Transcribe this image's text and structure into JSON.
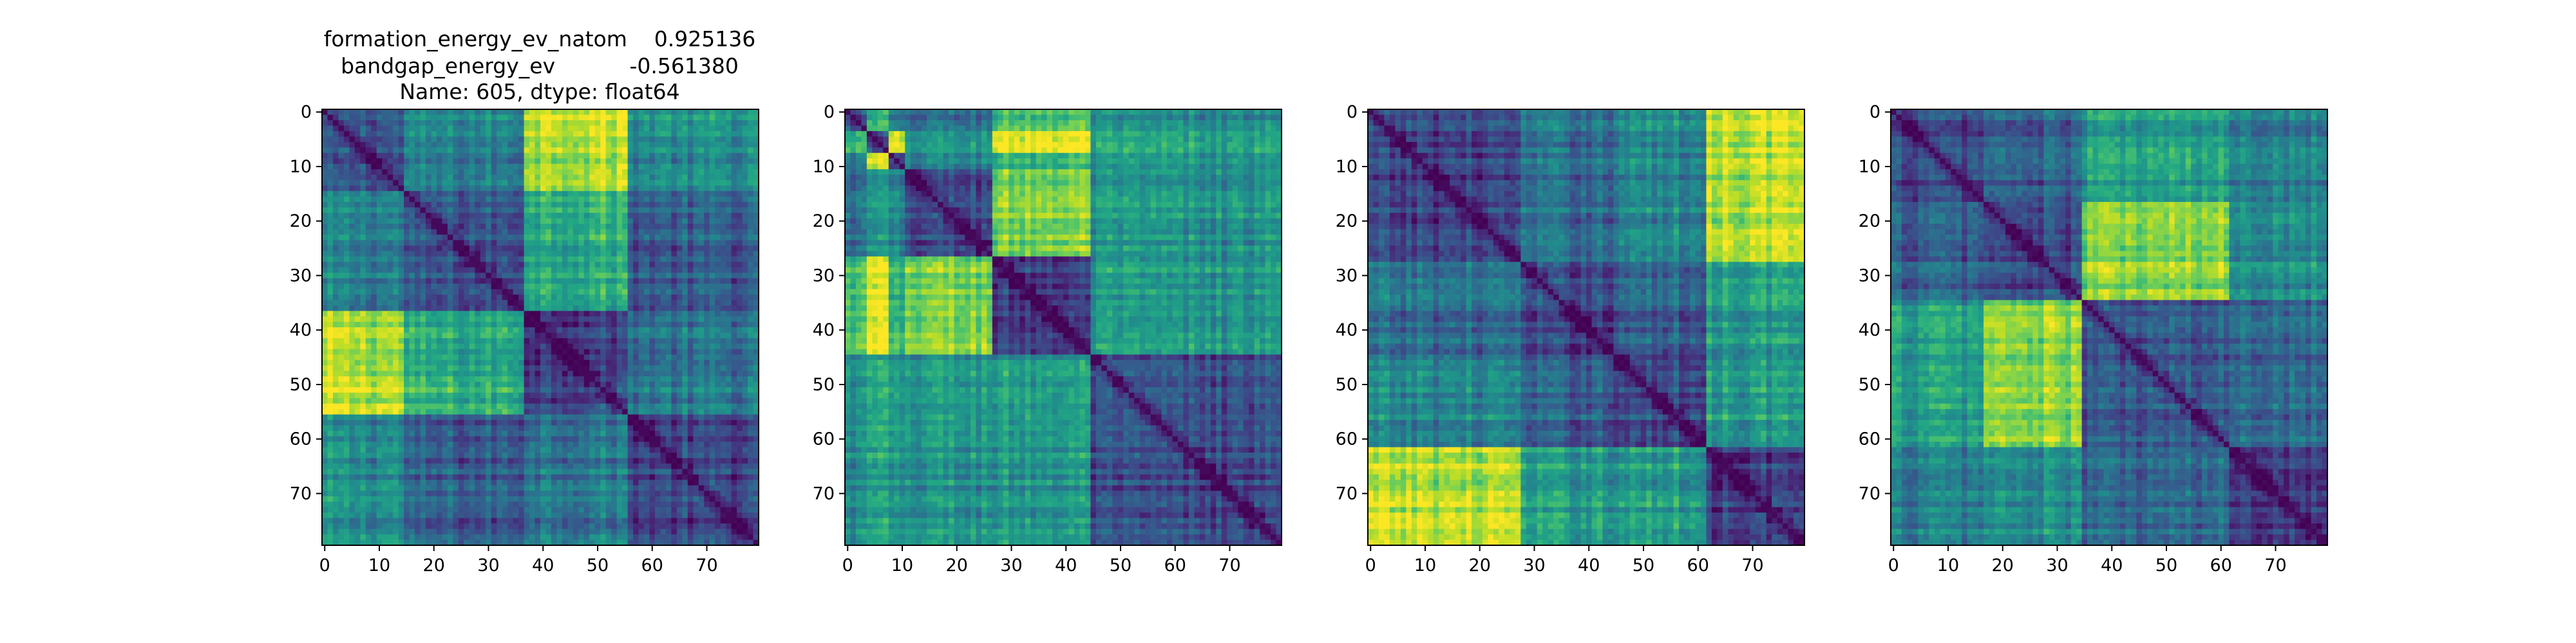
{
  "figure": {
    "title_lines": [
      "formation_energy_ev_natom    0.925136",
      "bandgap_energy_ev           -0.561380",
      "Name: 605, dtype: float64"
    ]
  },
  "chart_data": [
    {
      "type": "heatmap",
      "title": "",
      "colormap": "viridis",
      "n": 80,
      "xlim": [
        0,
        79
      ],
      "ylim": [
        79,
        0
      ],
      "xticks": [
        0,
        10,
        20,
        30,
        40,
        50,
        60,
        70
      ],
      "yticks": [
        0,
        10,
        20,
        30,
        40,
        50,
        60,
        70
      ],
      "values_note": "",
      "blocks": [
        [
          0,
          15
        ],
        [
          15,
          37
        ],
        [
          37,
          56
        ],
        [
          56,
          80
        ]
      ],
      "block_levels": [
        [
          0.25,
          0.42,
          0.9,
          0.48
        ],
        [
          0.42,
          0.24,
          0.62,
          0.28
        ],
        [
          0.9,
          0.62,
          0.22,
          0.4
        ],
        [
          0.48,
          0.28,
          0.4,
          0.2
        ]
      ]
    },
    {
      "type": "heatmap",
      "title": "",
      "colormap": "viridis",
      "n": 80,
      "xlim": [
        0,
        79
      ],
      "ylim": [
        79,
        0
      ],
      "xticks": [
        0,
        10,
        20,
        30,
        40,
        50,
        60,
        70
      ],
      "yticks": [
        0,
        10,
        20,
        30,
        40,
        50,
        60,
        70
      ],
      "blocks": [
        [
          0,
          4
        ],
        [
          4,
          8
        ],
        [
          8,
          11
        ],
        [
          11,
          27
        ],
        [
          27,
          45
        ],
        [
          45,
          80
        ]
      ],
      "block_levels": [
        [
          0.3,
          0.6,
          0.35,
          0.35,
          0.7,
          0.45
        ],
        [
          0.6,
          0.25,
          0.85,
          0.5,
          0.95,
          0.55
        ],
        [
          0.35,
          0.85,
          0.25,
          0.4,
          0.6,
          0.45
        ],
        [
          0.35,
          0.5,
          0.4,
          0.22,
          0.8,
          0.5
        ],
        [
          0.7,
          0.95,
          0.6,
          0.8,
          0.18,
          0.52
        ],
        [
          0.45,
          0.55,
          0.45,
          0.5,
          0.52,
          0.2
        ]
      ]
    },
    {
      "type": "heatmap",
      "title": "",
      "colormap": "viridis",
      "n": 80,
      "xlim": [
        0,
        79
      ],
      "ylim": [
        79,
        0
      ],
      "xticks": [
        0,
        10,
        20,
        30,
        40,
        50,
        60,
        70
      ],
      "yticks": [
        0,
        10,
        20,
        30,
        40,
        50,
        60,
        70
      ],
      "blocks": [
        [
          0,
          28
        ],
        [
          28,
          45
        ],
        [
          45,
          62
        ],
        [
          62,
          80
        ]
      ],
      "block_levels": [
        [
          0.2,
          0.35,
          0.45,
          0.9
        ],
        [
          0.35,
          0.2,
          0.3,
          0.55
        ],
        [
          0.45,
          0.3,
          0.22,
          0.55
        ],
        [
          0.9,
          0.55,
          0.55,
          0.2
        ]
      ]
    },
    {
      "type": "heatmap",
      "title": "",
      "colormap": "viridis",
      "n": 80,
      "xlim": [
        0,
        79
      ],
      "ylim": [
        79,
        0
      ],
      "xticks": [
        0,
        10,
        20,
        30,
        40,
        50,
        60,
        70
      ],
      "yticks": [
        0,
        10,
        20,
        30,
        40,
        50,
        60,
        70
      ],
      "blocks": [
        [
          0,
          17
        ],
        [
          17,
          35
        ],
        [
          35,
          62
        ],
        [
          62,
          80
        ]
      ],
      "block_levels": [
        [
          0.22,
          0.3,
          0.55,
          0.45
        ],
        [
          0.3,
          0.22,
          0.8,
          0.5
        ],
        [
          0.55,
          0.8,
          0.25,
          0.35
        ],
        [
          0.45,
          0.5,
          0.35,
          0.22
        ]
      ]
    }
  ]
}
